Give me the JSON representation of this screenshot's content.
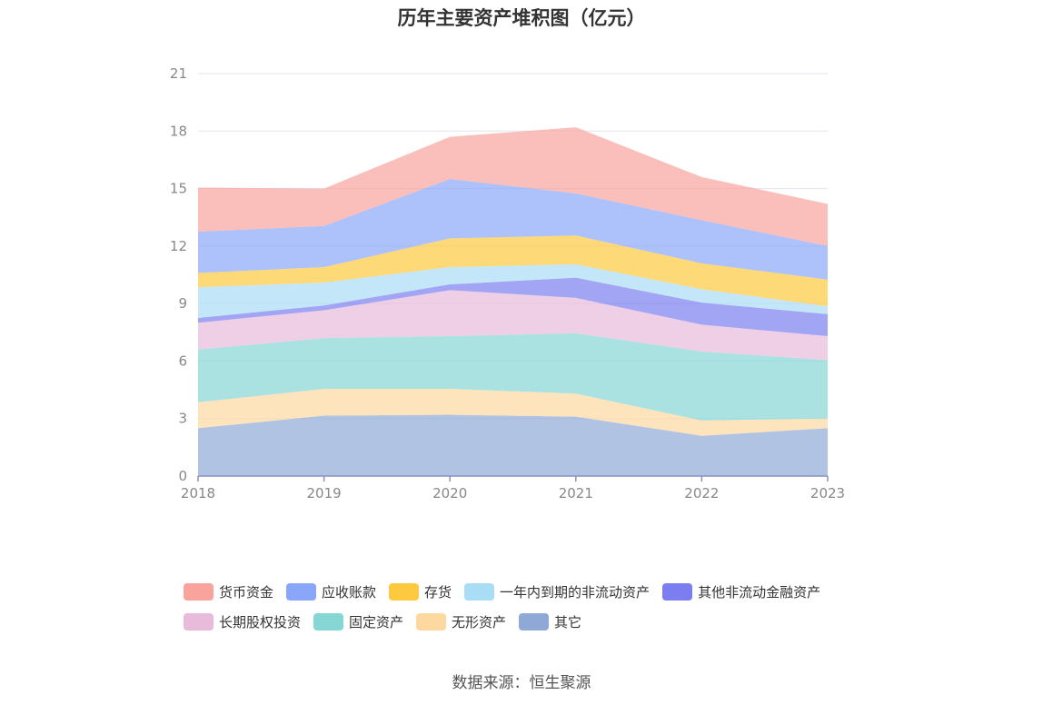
{
  "title": "历年主要资产堆积图（亿元）",
  "source": "数据来源：恒生聚源",
  "chart_data": {
    "type": "area",
    "stacked": true,
    "title": "历年主要资产堆积图（亿元）",
    "categories": [
      "2018",
      "2019",
      "2020",
      "2021",
      "2022",
      "2023"
    ],
    "ylim": [
      0,
      21
    ],
    "yticks": [
      0,
      3,
      6,
      9,
      12,
      15,
      18,
      21
    ],
    "legend_position": "bottom",
    "series": [
      {
        "name": "其它",
        "color": "#8fa9d6",
        "values": [
          2.5,
          3.15,
          3.2,
          3.1,
          2.1,
          2.5
        ]
      },
      {
        "name": "无形资产",
        "color": "#fdd9a0",
        "values": [
          1.35,
          1.4,
          1.35,
          1.2,
          0.8,
          0.5
        ]
      },
      {
        "name": "固定资产",
        "color": "#86d6d6",
        "values": [
          2.75,
          2.65,
          2.75,
          3.15,
          3.6,
          3.05
        ]
      },
      {
        "name": "长期股权投资",
        "color": "#e8bbdb",
        "values": [
          1.4,
          1.45,
          2.4,
          1.85,
          1.4,
          1.25
        ]
      },
      {
        "name": "其他非流动金融资产",
        "color": "#7b7df0",
        "values": [
          0.25,
          0.25,
          0.3,
          1.05,
          1.15,
          1.15
        ]
      },
      {
        "name": "一年内到期的非流动资产",
        "color": "#a9ddf5",
        "values": [
          1.6,
          1.2,
          0.9,
          0.7,
          0.7,
          0.4
        ]
      },
      {
        "name": "存货",
        "color": "#fec93e",
        "values": [
          0.75,
          0.8,
          1.5,
          1.5,
          1.35,
          1.4
        ]
      },
      {
        "name": "应收账款",
        "color": "#8aa6f8",
        "values": [
          2.15,
          2.15,
          3.1,
          2.2,
          2.25,
          1.75
        ]
      },
      {
        "name": "货币资金",
        "color": "#f8a49c",
        "values": [
          2.3,
          1.95,
          2.2,
          3.45,
          2.25,
          2.2
        ]
      }
    ]
  },
  "legend": {
    "rows": [
      [
        {
          "label": "货币资金",
          "color": "#f8a49c"
        },
        {
          "label": "应收账款",
          "color": "#8aa6f8"
        },
        {
          "label": "存货",
          "color": "#fec93e"
        },
        {
          "label": "一年内到期的非流动资产",
          "color": "#a9ddf5"
        },
        {
          "label": "其他非流动金融资产",
          "color": "#7b7df0"
        }
      ],
      [
        {
          "label": "长期股权投资",
          "color": "#e8bbdb"
        },
        {
          "label": "固定资产",
          "color": "#86d6d6"
        },
        {
          "label": "无形资产",
          "color": "#fdd9a0"
        },
        {
          "label": "其它",
          "color": "#8fa9d6"
        }
      ]
    ]
  }
}
